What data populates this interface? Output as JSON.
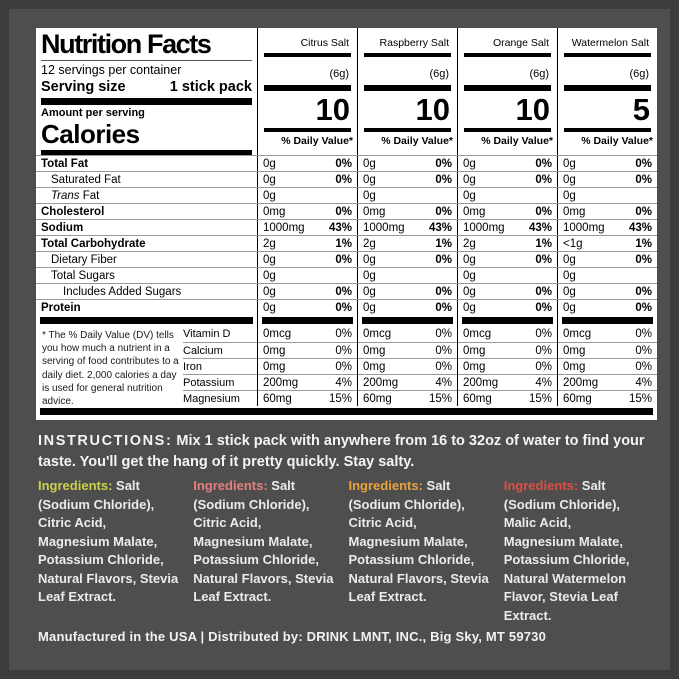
{
  "panel": {
    "title": "Nutrition Facts",
    "servings_per_container": "12 servings per container",
    "serving_size_label": "Serving size",
    "serving_size_value": "1 stick pack",
    "amount_per_serving": "Amount per serving",
    "calories_label": "Calories",
    "dv_header": "% Daily Value*",
    "flavors": [
      {
        "name": "Citrus Salt",
        "weight": "(6g)",
        "calories": "10"
      },
      {
        "name": "Raspberry Salt",
        "weight": "(6g)",
        "calories": "10"
      },
      {
        "name": "Orange Salt",
        "weight": "(6g)",
        "calories": "10"
      },
      {
        "name": "Watermelon Salt",
        "weight": "(6g)",
        "calories": "5"
      }
    ],
    "rows": [
      {
        "label": "Total Fat",
        "values": [
          {
            "amt": "0g",
            "dv": "0%"
          },
          {
            "amt": "0g",
            "dv": "0%"
          },
          {
            "amt": "0g",
            "dv": "0%"
          },
          {
            "amt": "0g",
            "dv": "0%"
          }
        ]
      },
      {
        "label": "Saturated Fat",
        "values": [
          {
            "amt": "0g",
            "dv": "0%"
          },
          {
            "amt": "0g",
            "dv": "0%"
          },
          {
            "amt": "0g",
            "dv": "0%"
          },
          {
            "amt": "0g",
            "dv": "0%"
          }
        ]
      },
      {
        "label_italic": "Trans",
        "label_rest": " Fat",
        "values": [
          {
            "amt": "0g",
            "dv": ""
          },
          {
            "amt": "0g",
            "dv": ""
          },
          {
            "amt": "0g",
            "dv": ""
          },
          {
            "amt": "0g",
            "dv": ""
          }
        ]
      },
      {
        "label": "Cholesterol",
        "values": [
          {
            "amt": "0mg",
            "dv": "0%"
          },
          {
            "amt": "0mg",
            "dv": "0%"
          },
          {
            "amt": "0mg",
            "dv": "0%"
          },
          {
            "amt": "0mg",
            "dv": "0%"
          }
        ]
      },
      {
        "label": "Sodium",
        "values": [
          {
            "amt": "1000mg",
            "dv": "43%"
          },
          {
            "amt": "1000mg",
            "dv": "43%"
          },
          {
            "amt": "1000mg",
            "dv": "43%"
          },
          {
            "amt": "1000mg",
            "dv": "43%"
          }
        ]
      },
      {
        "label": "Total Carbohydrate",
        "values": [
          {
            "amt": "2g",
            "dv": "1%"
          },
          {
            "amt": "2g",
            "dv": "1%"
          },
          {
            "amt": "2g",
            "dv": "1%"
          },
          {
            "amt": "<1g",
            "dv": "1%"
          }
        ]
      },
      {
        "label": "Dietary Fiber",
        "values": [
          {
            "amt": "0g",
            "dv": "0%"
          },
          {
            "amt": "0g",
            "dv": "0%"
          },
          {
            "amt": "0g",
            "dv": "0%"
          },
          {
            "amt": "0g",
            "dv": "0%"
          }
        ]
      },
      {
        "label": "Total Sugars",
        "values": [
          {
            "amt": "0g",
            "dv": ""
          },
          {
            "amt": "0g",
            "dv": ""
          },
          {
            "amt": "0g",
            "dv": ""
          },
          {
            "amt": "0g",
            "dv": ""
          }
        ]
      },
      {
        "label": "Includes Added Sugars",
        "values": [
          {
            "amt": "0g",
            "dv": "0%"
          },
          {
            "amt": "0g",
            "dv": "0%"
          },
          {
            "amt": "0g",
            "dv": "0%"
          },
          {
            "amt": "0g",
            "dv": "0%"
          }
        ]
      },
      {
        "label": "Protein",
        "values": [
          {
            "amt": "0g",
            "dv": "0%"
          },
          {
            "amt": "0g",
            "dv": "0%"
          },
          {
            "amt": "0g",
            "dv": "0%"
          },
          {
            "amt": "0g",
            "dv": "0%"
          }
        ]
      }
    ],
    "footnote": "* The % Daily Value (DV) tells you how much a nutrient in a serving of food contributes to a daily diet. 2,000 calories a day is used for general nutrition advice.",
    "vitamins": [
      {
        "label": "Vitamin D",
        "values": [
          {
            "amt": "0mcg",
            "dv": "0%"
          },
          {
            "amt": "0mcg",
            "dv": "0%"
          },
          {
            "amt": "0mcg",
            "dv": "0%"
          },
          {
            "amt": "0mcg",
            "dv": "0%"
          }
        ]
      },
      {
        "label": "Calcium",
        "values": [
          {
            "amt": "0mg",
            "dv": "0%"
          },
          {
            "amt": "0mg",
            "dv": "0%"
          },
          {
            "amt": "0mg",
            "dv": "0%"
          },
          {
            "amt": "0mg",
            "dv": "0%"
          }
        ]
      },
      {
        "label": "Iron",
        "values": [
          {
            "amt": "0mg",
            "dv": "0%"
          },
          {
            "amt": "0mg",
            "dv": "0%"
          },
          {
            "amt": "0mg",
            "dv": "0%"
          },
          {
            "amt": "0mg",
            "dv": "0%"
          }
        ]
      },
      {
        "label": "Potassium",
        "values": [
          {
            "amt": "200mg",
            "dv": "4%"
          },
          {
            "amt": "200mg",
            "dv": "4%"
          },
          {
            "amt": "200mg",
            "dv": "4%"
          },
          {
            "amt": "200mg",
            "dv": "4%"
          }
        ]
      },
      {
        "label": "Magnesium",
        "values": [
          {
            "amt": "60mg",
            "dv": "15%"
          },
          {
            "amt": "60mg",
            "dv": "15%"
          },
          {
            "amt": "60mg",
            "dv": "15%"
          },
          {
            "amt": "60mg",
            "dv": "15%"
          }
        ]
      }
    ]
  },
  "instructions": {
    "label": "INSTRUCTIONS:",
    "text": "Mix 1 stick pack with anywhere from 16 to 32oz of water to find your taste. You'll get the hang of it pretty quickly. Stay salty."
  },
  "ingredients": [
    {
      "flavor": "Citrus Salt",
      "label": "Ingredients:",
      "color": "#cbd04d",
      "text": "Salt (Sodium Chloride), Citric Acid, Magnesium Malate, Potassium Chloride, Natural Flavors, Stevia Leaf Extract."
    },
    {
      "flavor": "Raspberry Salt",
      "label": "Ingredients:",
      "color": "#e77d7d",
      "text": "Salt (Sodium Chloride), Citric Acid, Magnesium Malate, Potassium Chloride, Natural Flavors, Stevia Leaf Extract."
    },
    {
      "flavor": "Orange Salt",
      "label": "Ingredients:",
      "color": "#e9a43b",
      "text": "Salt (Sodium Chloride), Citric Acid, Magnesium Malate, Potassium Chloride, Natural Flavors, Stevia Leaf Extract."
    },
    {
      "flavor": "Watermelon Salt",
      "label": "Ingredients:",
      "color": "#de4f3f",
      "text": "Salt (Sodium Chloride), Malic Acid, Magnesium Malate, Potassium Chloride, Natural Watermelon Flavor, Stevia Leaf Extract."
    }
  ],
  "footer": {
    "text": "Manufactured in the USA  |  Distributed by: DRINK LMNT, INC., Big Sky, MT 59730"
  }
}
